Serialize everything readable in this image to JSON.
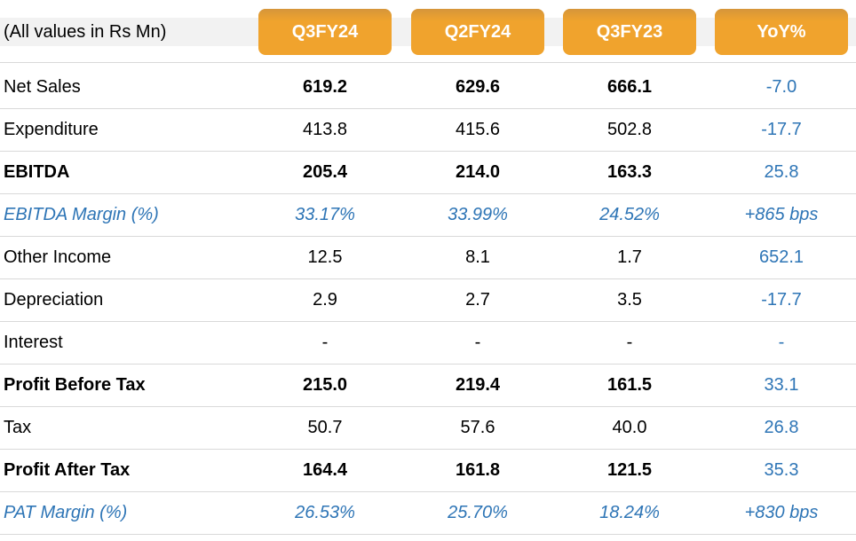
{
  "header": {
    "label": "(All values in Rs Mn)",
    "columns": [
      "Q3FY24",
      "Q2FY24",
      "Q3FY23",
      "YoY%"
    ]
  },
  "rows": [
    {
      "label": "Net Sales",
      "values": [
        "619.2",
        "629.6",
        "666.1",
        "-7.0"
      ],
      "style": "bold-values"
    },
    {
      "label": "Expenditure",
      "values": [
        "413.8",
        "415.6",
        "502.8",
        "-17.7"
      ],
      "style": "normal"
    },
    {
      "label": "EBITDA",
      "values": [
        "205.4",
        "214.0",
        "163.3",
        "25.8"
      ],
      "style": "bold"
    },
    {
      "label": "EBITDA Margin (%)",
      "values": [
        "33.17%",
        "33.99%",
        "24.52%",
        "+865 bps"
      ],
      "style": "margin"
    },
    {
      "label": "Other Income",
      "values": [
        "12.5",
        "8.1",
        "1.7",
        "652.1"
      ],
      "style": "normal"
    },
    {
      "label": "Depreciation",
      "values": [
        "2.9",
        "2.7",
        "3.5",
        "-17.7"
      ],
      "style": "normal"
    },
    {
      "label": "Interest",
      "values": [
        "-",
        "-",
        "-",
        "-"
      ],
      "style": "normal"
    },
    {
      "label": "Profit Before Tax",
      "values": [
        "215.0",
        "219.4",
        "161.5",
        "33.1"
      ],
      "style": "bold"
    },
    {
      "label": "Tax",
      "values": [
        "50.7",
        "57.6",
        "40.0",
        "26.8"
      ],
      "style": "normal"
    },
    {
      "label": "Profit After Tax",
      "values": [
        "164.4",
        "161.8",
        "121.5",
        "35.3"
      ],
      "style": "bold"
    },
    {
      "label": "PAT Margin (%)",
      "values": [
        "26.53%",
        "25.70%",
        "18.24%",
        "+830 bps"
      ],
      "style": "margin"
    }
  ],
  "colors": {
    "header_tab": "#f0a32d",
    "highlight_text": "#2e75b6",
    "rule": "#d9d9d9"
  }
}
